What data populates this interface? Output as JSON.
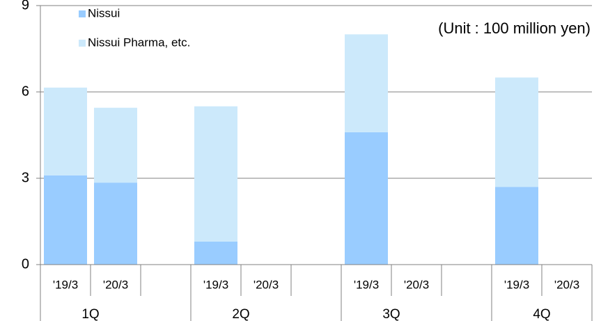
{
  "chart_data": {
    "type": "stacked_bar",
    "annotation": "(Unit : 100 million yen)",
    "groups": [
      "1Q",
      "2Q",
      "3Q",
      "4Q"
    ],
    "categories": [
      "'19/3",
      "'20/3",
      "'19/3",
      "'20/3",
      "'19/3",
      "'20/3",
      "'19/3",
      "'20/3"
    ],
    "series": [
      {
        "name": "Nissui",
        "color": "#99ccff",
        "values": [
          3.1,
          2.85,
          0.8,
          null,
          4.6,
          null,
          2.7,
          null
        ]
      },
      {
        "name": "Nissui Pharma, etc.",
        "color": "#cce9fb",
        "values": [
          3.05,
          2.6,
          4.7,
          null,
          3.4,
          null,
          3.8,
          null
        ]
      }
    ],
    "ylim": [
      0,
      9
    ],
    "yticks": [
      0,
      3,
      6,
      9
    ],
    "grid": true,
    "legend": "upper left"
  }
}
